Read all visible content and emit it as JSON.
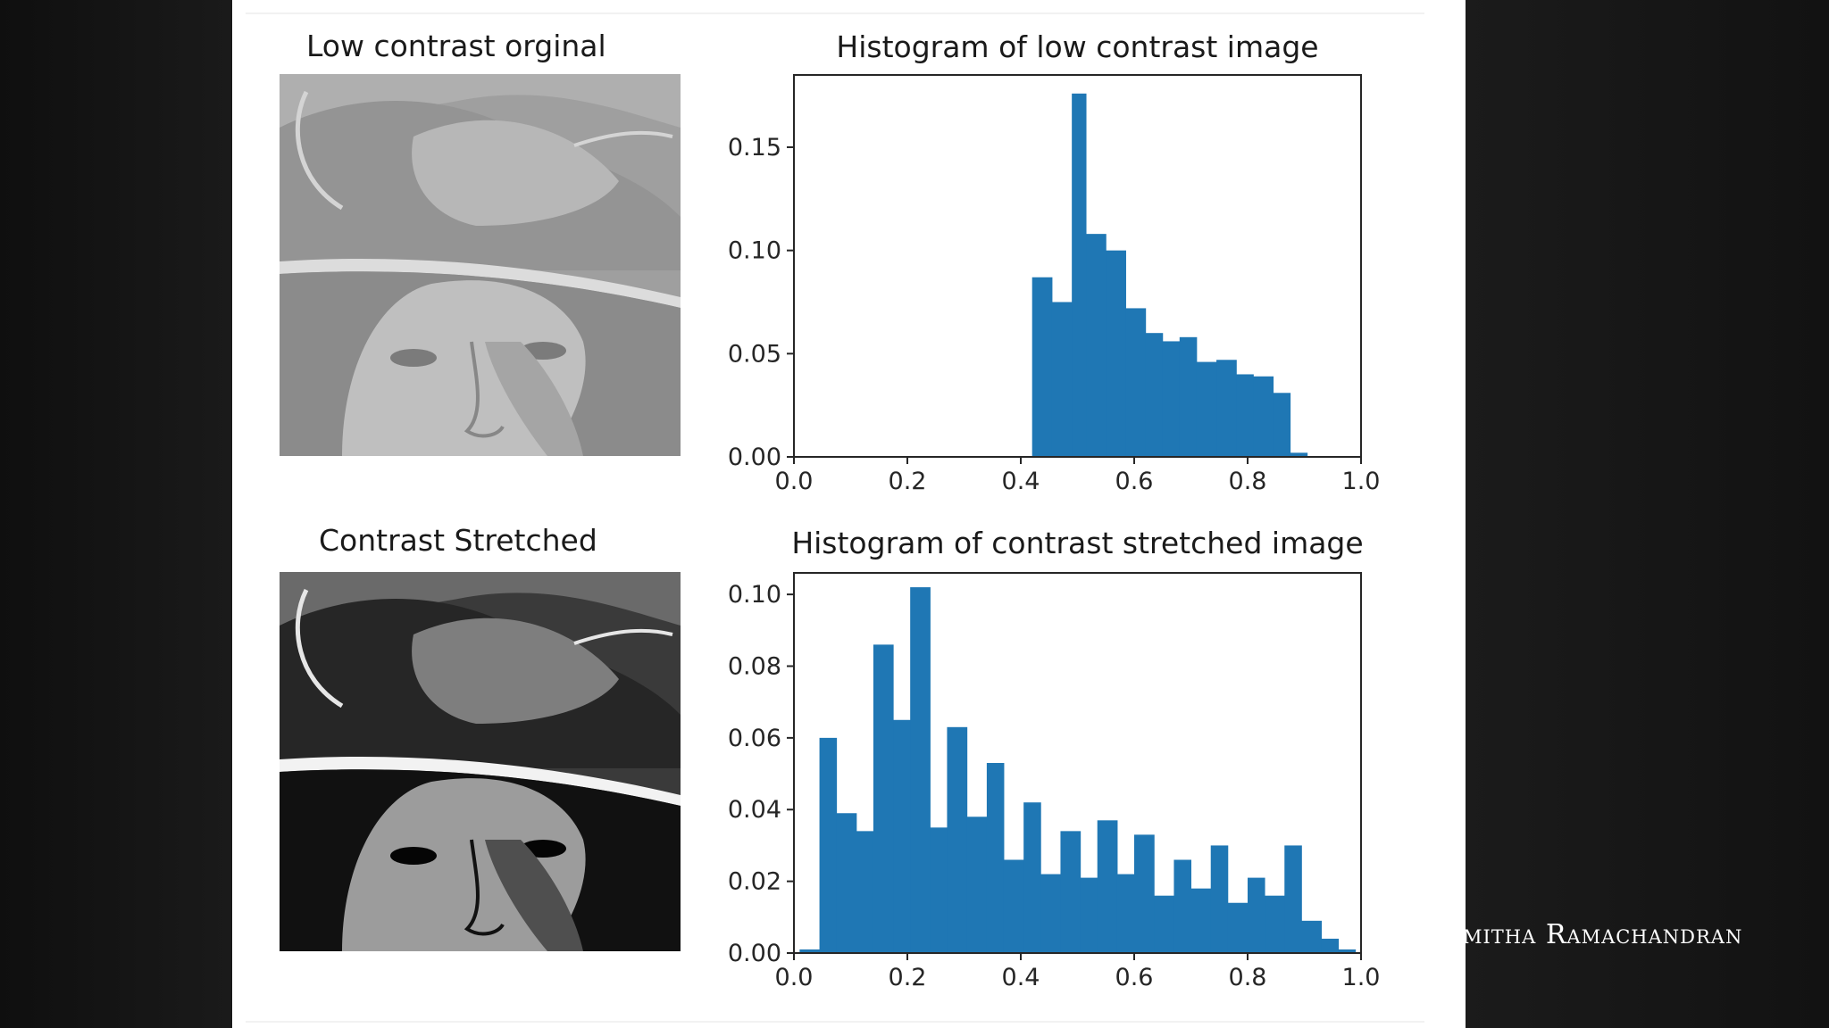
{
  "panels": {
    "low_image_title": "Low contrast orginal",
    "stretched_image_title": "Contrast Stretched"
  },
  "watermark": "mitha Ramachandran",
  "colors": {
    "bar": "#1f77b4",
    "axes": "#262626",
    "background": "#ffffff"
  },
  "chart_data": [
    {
      "type": "bar",
      "title": "Histogram of low contrast image",
      "xlabel": "",
      "ylabel": "",
      "xlim": [
        0.0,
        1.0
      ],
      "ylim": [
        0.0,
        0.185
      ],
      "xticks": [
        "0.0",
        "0.2",
        "0.4",
        "0.6",
        "0.8",
        "1.0"
      ],
      "yticks": [
        "0.00",
        "0.05",
        "0.10",
        "0.15"
      ],
      "grid": false,
      "bins": [
        {
          "x0": 0.42,
          "x1": 0.455,
          "value": 0.087
        },
        {
          "x0": 0.455,
          "x1": 0.49,
          "value": 0.075
        },
        {
          "x0": 0.49,
          "x1": 0.515,
          "value": 0.176
        },
        {
          "x0": 0.515,
          "x1": 0.55,
          "value": 0.108
        },
        {
          "x0": 0.55,
          "x1": 0.585,
          "value": 0.1
        },
        {
          "x0": 0.585,
          "x1": 0.62,
          "value": 0.072
        },
        {
          "x0": 0.62,
          "x1": 0.65,
          "value": 0.06
        },
        {
          "x0": 0.65,
          "x1": 0.68,
          "value": 0.056
        },
        {
          "x0": 0.68,
          "x1": 0.71,
          "value": 0.058
        },
        {
          "x0": 0.71,
          "x1": 0.745,
          "value": 0.046
        },
        {
          "x0": 0.745,
          "x1": 0.78,
          "value": 0.047
        },
        {
          "x0": 0.78,
          "x1": 0.81,
          "value": 0.04
        },
        {
          "x0": 0.81,
          "x1": 0.845,
          "value": 0.039
        },
        {
          "x0": 0.845,
          "x1": 0.875,
          "value": 0.031
        },
        {
          "x0": 0.875,
          "x1": 0.905,
          "value": 0.002
        }
      ]
    },
    {
      "type": "bar",
      "title": "Histogram of contrast stretched image",
      "xlabel": "",
      "ylabel": "",
      "xlim": [
        0.0,
        1.0
      ],
      "ylim": [
        0.0,
        0.106
      ],
      "xticks": [
        "0.0",
        "0.2",
        "0.4",
        "0.6",
        "0.8",
        "1.0"
      ],
      "yticks": [
        "0.00",
        "0.02",
        "0.04",
        "0.06",
        "0.08",
        "0.10"
      ],
      "grid": false,
      "bins": [
        {
          "x0": 0.01,
          "x1": 0.045,
          "value": 0.001
        },
        {
          "x0": 0.045,
          "x1": 0.075,
          "value": 0.06
        },
        {
          "x0": 0.075,
          "x1": 0.11,
          "value": 0.039
        },
        {
          "x0": 0.11,
          "x1": 0.14,
          "value": 0.034
        },
        {
          "x0": 0.14,
          "x1": 0.175,
          "value": 0.086
        },
        {
          "x0": 0.175,
          "x1": 0.205,
          "value": 0.065
        },
        {
          "x0": 0.205,
          "x1": 0.24,
          "value": 0.102
        },
        {
          "x0": 0.24,
          "x1": 0.27,
          "value": 0.035
        },
        {
          "x0": 0.27,
          "x1": 0.305,
          "value": 0.063
        },
        {
          "x0": 0.305,
          "x1": 0.34,
          "value": 0.038
        },
        {
          "x0": 0.34,
          "x1": 0.37,
          "value": 0.053
        },
        {
          "x0": 0.37,
          "x1": 0.405,
          "value": 0.026
        },
        {
          "x0": 0.405,
          "x1": 0.435,
          "value": 0.042
        },
        {
          "x0": 0.435,
          "x1": 0.47,
          "value": 0.022
        },
        {
          "x0": 0.47,
          "x1": 0.505,
          "value": 0.034
        },
        {
          "x0": 0.505,
          "x1": 0.535,
          "value": 0.021
        },
        {
          "x0": 0.535,
          "x1": 0.57,
          "value": 0.037
        },
        {
          "x0": 0.57,
          "x1": 0.6,
          "value": 0.022
        },
        {
          "x0": 0.6,
          "x1": 0.635,
          "value": 0.033
        },
        {
          "x0": 0.635,
          "x1": 0.67,
          "value": 0.016
        },
        {
          "x0": 0.67,
          "x1": 0.7,
          "value": 0.026
        },
        {
          "x0": 0.7,
          "x1": 0.735,
          "value": 0.018
        },
        {
          "x0": 0.735,
          "x1": 0.765,
          "value": 0.03
        },
        {
          "x0": 0.765,
          "x1": 0.8,
          "value": 0.014
        },
        {
          "x0": 0.8,
          "x1": 0.83,
          "value": 0.021
        },
        {
          "x0": 0.83,
          "x1": 0.865,
          "value": 0.016
        },
        {
          "x0": 0.865,
          "x1": 0.895,
          "value": 0.03
        },
        {
          "x0": 0.895,
          "x1": 0.93,
          "value": 0.009
        },
        {
          "x0": 0.93,
          "x1": 0.96,
          "value": 0.004
        },
        {
          "x0": 0.96,
          "x1": 0.99,
          "value": 0.001
        }
      ]
    }
  ]
}
